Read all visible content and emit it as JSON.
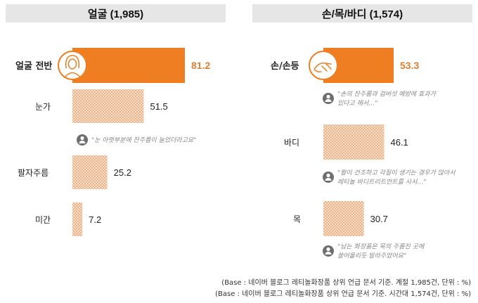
{
  "chart_data": [
    {
      "type": "bar",
      "title": "얼굴 (1,985)",
      "categories": [
        "얼굴 전반",
        "눈가",
        "팔자주름",
        "미간"
      ],
      "values": [
        81.2,
        51.5,
        25.2,
        7.2
      ],
      "value_labels": [
        "81.2",
        "51.5",
        "25.2",
        "7.2"
      ],
      "highlight": "얼굴 전반",
      "quotes": [
        "\"눈 아랫부분에 잔주름이 늘었더라고요\""
      ]
    },
    {
      "type": "bar",
      "title": "손/목/바디 (1,574)",
      "categories": [
        "손/손등",
        "바디",
        "목"
      ],
      "values": [
        53.3,
        46.1,
        30.7
      ],
      "value_labels": [
        "53.3",
        "46.1",
        "30.7"
      ],
      "highlight": "손/손등",
      "quotes": [
        [
          "\"손의 잔주름과 검버섯 예방에 효과가",
          "있다고 해서…\""
        ],
        [
          "\"팔이 건조하고 각질이 생기는 경우가 많아서",
          "레티놀 바디트리트먼트를 사서…\""
        ],
        [
          "\"남는 화장품은 목의 주름진 곳에",
          "쓸어올리듯 발라주었어요\""
        ]
      ]
    }
  ],
  "colors": {
    "accent": "#ef7d22",
    "pattern": "#f3c9a8",
    "header_bg": "#e6e6e6",
    "icon": "#6e6e6e"
  },
  "icons": [
    "face-outline-icon",
    "hand-outline-icon",
    "person-icon"
  ],
  "footnotes": [
    "(Base : 네이버 블로그 레티놀화장품 상위 언급 문서 기준. 계절 1,985건, 단위 : %)",
    "(Base : 네이버 블로그 레티놀화장품 상위 언급 문서 기준. 시간대 1,574건, 단위 : %)"
  ]
}
